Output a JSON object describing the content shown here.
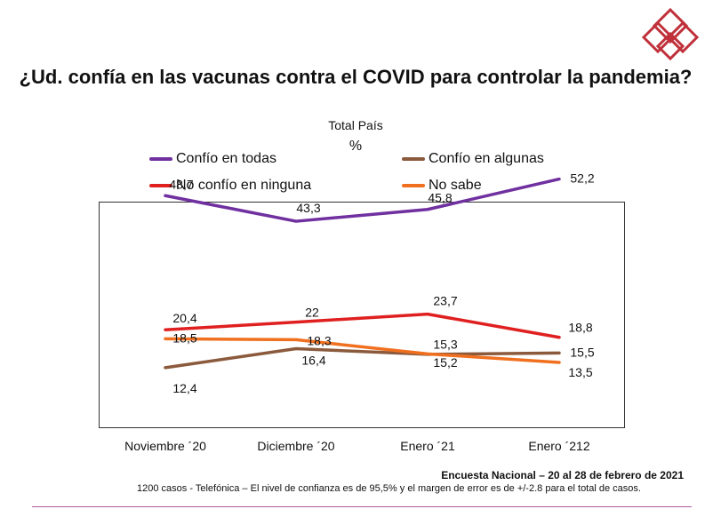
{
  "title": "¿Ud. confía en las vacunas contra el COVID para controlar la pandemia?",
  "subtitle_1": "Total País",
  "subtitle_2": "%",
  "source": "Encuesta Nacional – 20 al 28 de febrero de 2021",
  "footnote": "1200 casos - Telefónica  – El nivel de confianza es de 95,5% y el margen de error es de +/-2.8 para el total de casos.",
  "colors": {
    "logo": "#c0303a",
    "frame": "#333333",
    "divider": "#b05a9a"
  },
  "chart_data": {
    "type": "line",
    "categories": [
      "Noviembre ´20",
      "Diciembre ´20",
      "Enero ´21",
      "Enero ´212"
    ],
    "ylim": [
      0,
      60
    ],
    "grid": false,
    "legend_position": "top",
    "series": [
      {
        "name": "Confío en todas",
        "color": "#7030a0",
        "values": [
          48.7,
          43.3,
          45.8,
          52.2
        ],
        "labels": [
          "48,7",
          "43,3",
          "45,8",
          "52,2"
        ]
      },
      {
        "name": "Confío en algunas",
        "color": "#8b5a3c",
        "values": [
          12.4,
          16.4,
          15.2,
          15.5
        ],
        "labels": [
          "12,4",
          "16,4",
          "15,2",
          "15,5"
        ]
      },
      {
        "name": "No confío en ninguna",
        "color": "#e02020",
        "values": [
          20.4,
          22,
          23.7,
          18.8
        ],
        "labels": [
          "20,4",
          "22",
          "23,7",
          "18,8"
        ]
      },
      {
        "name": "No sabe",
        "color": "#f07020",
        "values": [
          18.5,
          18.3,
          15.3,
          13.5
        ],
        "labels": [
          "18,5",
          "18,3",
          "15,3",
          "13,5"
        ]
      }
    ]
  }
}
